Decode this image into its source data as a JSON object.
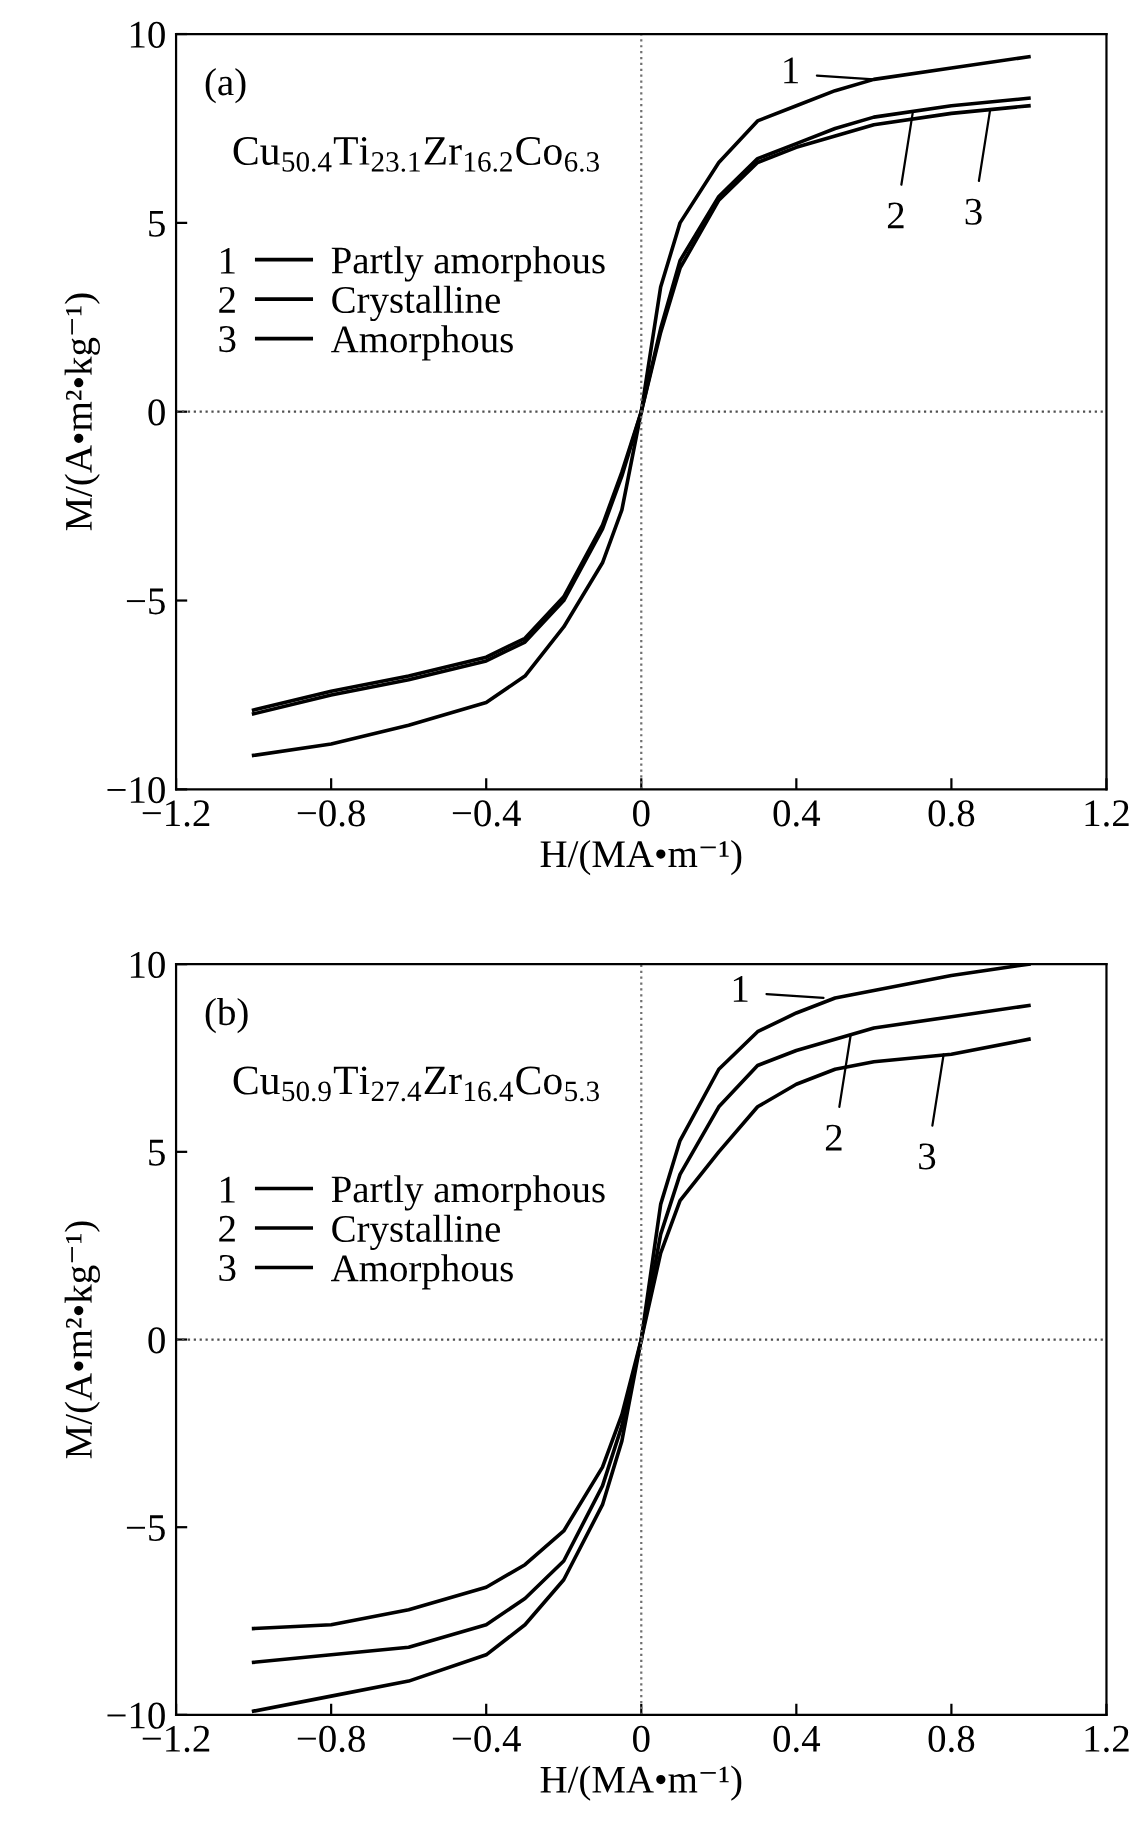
{
  "chart_data": [
    {
      "type": "line",
      "xlabel": "H/(MA•m⁻¹)",
      "ylabel": "M/(A•m²•kg⁻¹)",
      "xlim": [
        -1.2,
        1.2
      ],
      "ylim": [
        -10,
        10
      ],
      "xticks": [
        -1.2,
        -0.8,
        -0.4,
        0,
        0.4,
        0.8,
        1.2
      ],
      "yticks": [
        -10,
        -5,
        0,
        5,
        10
      ],
      "grid": false,
      "legend": "left",
      "line_style": "solid",
      "marker": "none",
      "x": [
        -1,
        -0.8,
        -0.6,
        -0.4,
        -0.3,
        -0.2,
        -0.1,
        -0.05,
        0,
        0.05,
        0.1,
        0.2,
        0.3,
        0.4,
        0.5,
        0.6,
        0.8,
        1.0
      ],
      "series": [
        {
          "name": "Partly amorphous",
          "color": "#000000",
          "values": [
            -9.1,
            -8.8,
            -8.3,
            -7.7,
            -7.0,
            -5.7,
            -4.0,
            -2.6,
            0,
            3.3,
            5.0,
            6.6,
            7.7,
            8.1,
            8.5,
            8.8,
            9.1,
            9.4
          ]
        },
        {
          "name": "Crystalline",
          "color": "#000000",
          "values": [
            -8.0,
            -7.5,
            -7.1,
            -6.6,
            -6.1,
            -5.0,
            -3.1,
            -1.7,
            0,
            2.2,
            4.0,
            5.7,
            6.7,
            7.1,
            7.5,
            7.8,
            8.1,
            8.3
          ]
        },
        {
          "name": "Amorphous",
          "color": "#000000",
          "values": [
            -7.9,
            -7.4,
            -7.0,
            -6.5,
            -6.0,
            -4.9,
            -3.0,
            -1.6,
            0,
            2.1,
            3.8,
            5.6,
            6.6,
            7.0,
            7.3,
            7.6,
            7.9,
            8.1
          ]
        }
      ],
      "ref_lines": [
        {
          "axis": "x",
          "value": 0,
          "color": "#707070",
          "line_style": "dotted"
        },
        {
          "axis": "y",
          "value": 0,
          "color": "#505050",
          "line_style": "dotted"
        }
      ],
      "annotations": [
        "(a)",
        "Cu$_{50.4}$Ti$_{23.1}$Zr$_{16.2}$Co$_{6.3}$",
        {
          "text": "1",
          "x": 0.6,
          "y": 8.8
        },
        {
          "text": "2",
          "x": 0.7,
          "y": 7.9
        },
        {
          "text": "3",
          "x": 0.9,
          "y": 8.0
        }
      ]
    },
    {
      "type": "line",
      "xlabel": "H/(MA•m⁻¹)",
      "ylabel": "M/(A•m²•kg⁻¹)",
      "xlim": [
        -1.2,
        1.2
      ],
      "ylim": [
        -10,
        10
      ],
      "xticks": [
        -1.2,
        -0.8,
        -0.4,
        0,
        0.4,
        0.8,
        1.2
      ],
      "yticks": [
        -10,
        -5,
        0,
        5,
        10
      ],
      "grid": false,
      "legend": "left",
      "line_style": "solid",
      "marker": "none",
      "x": [
        -1,
        -0.8,
        -0.6,
        -0.4,
        -0.3,
        -0.2,
        -0.1,
        -0.05,
        0,
        0.05,
        0.1,
        0.2,
        0.3,
        0.4,
        0.5,
        0.6,
        0.8,
        1.0
      ],
      "series": [
        {
          "name": "Partly amorphous",
          "color": "#000000",
          "values": [
            -9.9,
            -9.5,
            -9.1,
            -8.4,
            -7.6,
            -6.4,
            -4.4,
            -2.7,
            0,
            3.6,
            5.3,
            7.2,
            8.2,
            8.7,
            9.1,
            9.3,
            9.7,
            10.0
          ]
        },
        {
          "name": "Crystalline",
          "color": "#000000",
          "values": [
            -8.6,
            -8.4,
            -8.2,
            -7.6,
            -6.9,
            -5.9,
            -3.9,
            -2.3,
            0,
            2.8,
            4.4,
            6.2,
            7.3,
            7.7,
            8.0,
            8.3,
            8.6,
            8.9
          ]
        },
        {
          "name": "Amorphous",
          "color": "#000000",
          "values": [
            -7.7,
            -7.6,
            -7.2,
            -6.6,
            -6.0,
            -5.1,
            -3.4,
            -2.0,
            0,
            2.3,
            3.7,
            5.0,
            6.2,
            6.8,
            7.2,
            7.4,
            7.6,
            8.0
          ]
        }
      ],
      "ref_lines": [
        {
          "axis": "x",
          "value": 0,
          "color": "#707070",
          "line_style": "dotted"
        },
        {
          "axis": "y",
          "value": 0,
          "color": "#505050",
          "line_style": "dotted"
        }
      ],
      "annotations": [
        "(b)",
        "Cu$_{50.9}$Ti$_{27.4}$Zr$_{16.4}$Co$_{5.3}$",
        {
          "text": "1",
          "x": 0.47,
          "y": 9.1
        },
        {
          "text": "2",
          "x": 0.54,
          "y": 8.1
        },
        {
          "text": "3",
          "x": 0.78,
          "y": 7.6
        }
      ]
    }
  ]
}
